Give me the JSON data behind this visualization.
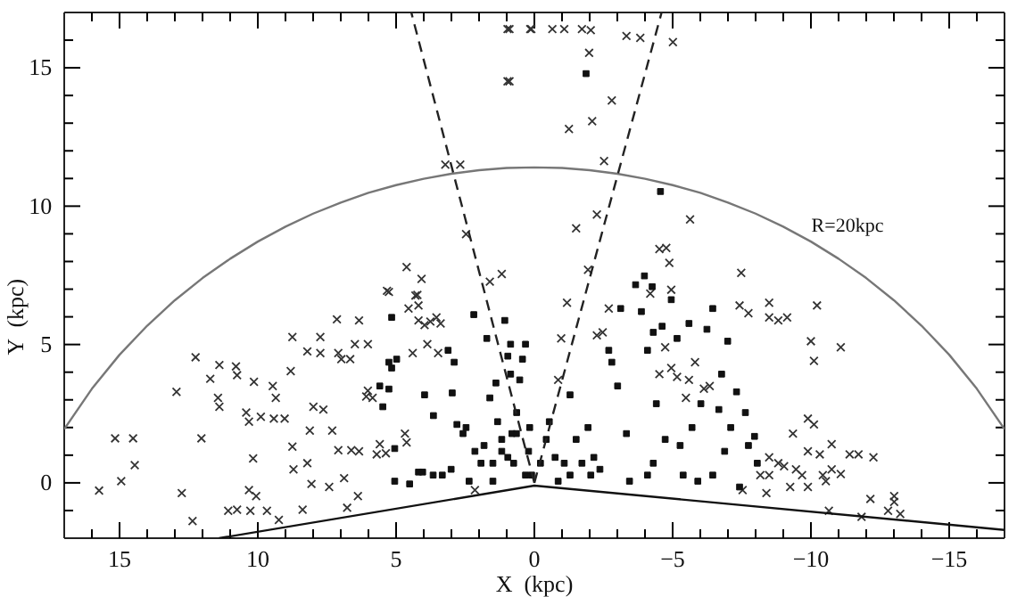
{
  "chart_data": {
    "type": "scatter",
    "xlabel": "X  (kpc)",
    "ylabel": "Y  (kpc)",
    "xlim": [
      17,
      -17
    ],
    "ylim": [
      -2,
      17
    ],
    "xticks": [
      {
        "value": 16,
        "label": null
      },
      15,
      {
        "value": 14,
        "label": null
      },
      {
        "value": 13,
        "label": null
      },
      {
        "value": 12,
        "label": null
      },
      {
        "value": 11,
        "label": null
      },
      10,
      {
        "value": 9,
        "label": null
      },
      {
        "value": 8,
        "label": null
      },
      {
        "value": 7,
        "label": null
      },
      {
        "value": 6,
        "label": null
      },
      5,
      {
        "value": 4,
        "label": null
      },
      {
        "value": 3,
        "label": null
      },
      {
        "value": 2,
        "label": null
      },
      {
        "value": 1,
        "label": null
      },
      0,
      {
        "value": -1,
        "label": null
      },
      {
        "value": -2,
        "label": null
      },
      {
        "value": -3,
        "label": null
      },
      {
        "value": -4,
        "label": null
      },
      {
        "value": -5,
        "label": "−5"
      },
      {
        "value": -6,
        "label": null
      },
      {
        "value": -7,
        "label": null
      },
      {
        "value": -8,
        "label": null
      },
      {
        "value": -9,
        "label": null
      },
      {
        "value": -10,
        "label": "−10"
      },
      {
        "value": -11,
        "label": null
      },
      {
        "value": -12,
        "label": null
      },
      {
        "value": -13,
        "label": null
      },
      {
        "value": -14,
        "label": null
      },
      {
        "value": -15,
        "label": "−15"
      },
      {
        "value": -16,
        "label": null
      }
    ],
    "yticks": [
      {
        "value": -1,
        "label": null
      },
      0,
      {
        "value": 1,
        "label": null
      },
      {
        "value": 2,
        "label": null
      },
      {
        "value": 3,
        "label": null
      },
      {
        "value": 4,
        "label": null
      },
      5,
      {
        "value": 6,
        "label": null
      },
      {
        "value": 7,
        "label": null
      },
      {
        "value": 8,
        "label": null
      },
      {
        "value": 9,
        "label": null
      },
      10,
      {
        "value": 11,
        "label": null
      },
      {
        "value": 12,
        "label": null
      },
      {
        "value": 13,
        "label": null
      },
      {
        "value": 14,
        "label": null
      },
      15,
      {
        "value": 16,
        "label": null
      }
    ],
    "grid": false,
    "annotations": [
      "R=20kpc"
    ],
    "series": [
      {
        "type": "scatter",
        "marker": "cross",
        "color": "#333333",
        "x": [
          15.74,
          15.16,
          14.94,
          14.51,
          14.45,
          12.94,
          12.75,
          12.36,
          12.25,
          12.04,
          11.72,
          11.44,
          11.39,
          11.39,
          10.79,
          10.75,
          11.07,
          10.75,
          10.42,
          10.32,
          10.27,
          10.14,
          10.17,
          10.32,
          10.06,
          9.89,
          9.46,
          9.35,
          9.42,
          9.67,
          9.24,
          9.03,
          8.81,
          8.75,
          8.75,
          8.71,
          8.38,
          8.21,
          7.99,
          8.12,
          8.21,
          7.74,
          7.74,
          8.06,
          7.63,
          7.42,
          7.31,
          7.09,
          7.14,
          7.09,
          6.98,
          6.88,
          6.77,
          6.66,
          6.62,
          6.49,
          6.34,
          6.34,
          6.38,
          6.02,
          6.08,
          6.02,
          5.85,
          5.7,
          5.59,
          5.37,
          5.26,
          4.68,
          4.62,
          4.55,
          4.4,
          4.3,
          4.19,
          4.19,
          3.97,
          3.76,
          3.54,
          3.48,
          3.39,
          3.87,
          2.15,
          -1.18,
          -0.97,
          -0.86,
          -2.26,
          -2.47,
          -2.69,
          -4.19,
          -4.52,
          -4.73,
          -4.95,
          -5.16,
          -5.48,
          -5.59,
          -5.81,
          -6.13,
          -6.34,
          -7.42,
          -7.74,
          -8.49,
          -8.49,
          -8.82,
          -9.14,
          -10.22,
          -10.0,
          -10.11,
          -11.08,
          -9.89,
          -10.11,
          -9.35,
          -10.75,
          -9.89,
          -10.32,
          -11.4,
          -11.72,
          -12.26,
          -8.49,
          -8.82,
          -9.03,
          -8.17,
          -8.49,
          -9.46,
          -9.68,
          -10.43,
          -10.75,
          -11.08,
          -10.54,
          -7.53,
          -8.39,
          -9.25,
          -9.89,
          -12.15,
          -13.01,
          -13.01,
          -12.79,
          -13.23,
          -11.83,
          -10.65,
          3.22,
          2.68,
          2.47,
          4.62,
          4.08,
          5.33,
          4.23,
          1.61,
          1.18,
          0.9,
          0.9,
          0.15,
          0.97,
          0.11,
          -0.65,
          -1.08,
          -1.72,
          -2.04,
          -3.33,
          -3.83,
          -5.01,
          0.97,
          -1.98,
          -2.8,
          -2.09,
          -1.25,
          -2.52,
          -5.63,
          -2.26,
          -1.51,
          -4.52,
          -4.77,
          -4.88,
          -7.48,
          -1.94,
          -4.95
        ],
        "values": [
          -0.28,
          1.61,
          0.06,
          1.61,
          0.64,
          3.29,
          -0.37,
          -1.38,
          4.54,
          1.61,
          3.76,
          3.07,
          2.75,
          4.26,
          4.21,
          3.89,
          -1.01,
          -0.97,
          2.54,
          2.21,
          -1.01,
          3.65,
          0.88,
          -0.26,
          -0.48,
          2.39,
          3.5,
          3.07,
          2.32,
          -1.01,
          -1.34,
          2.32,
          4.04,
          5.27,
          1.31,
          0.49,
          -0.97,
          0.71,
          2.75,
          1.89,
          4.75,
          4.69,
          5.27,
          -0.04,
          2.65,
          -0.15,
          1.89,
          1.18,
          5.91,
          4.69,
          4.47,
          0.17,
          -0.9,
          4.47,
          1.18,
          5.01,
          5.87,
          1.14,
          -0.48,
          5.01,
          3.12,
          3.33,
          3.07,
          1.03,
          1.4,
          1.07,
          6.9,
          1.78,
          1.46,
          6.3,
          4.69,
          6.77,
          5.87,
          6.41,
          5.7,
          5.83,
          5.98,
          4.69,
          5.76,
          5.01,
          -0.26,
          6.51,
          5.22,
          3.72,
          5.33,
          5.44,
          6.3,
          6.84,
          3.93,
          4.9,
          4.15,
          3.83,
          3.07,
          3.72,
          4.36,
          3.4,
          3.5,
          6.41,
          6.13,
          6.51,
          5.98,
          5.87,
          5.98,
          6.41,
          5.12,
          4.41,
          4.9,
          2.32,
          2.11,
          1.78,
          1.4,
          1.14,
          1.03,
          1.03,
          1.03,
          0.92,
          0.92,
          0.71,
          0.6,
          0.28,
          0.28,
          0.49,
          0.28,
          0.28,
          0.49,
          0.32,
          0.06,
          -0.26,
          -0.37,
          -0.15,
          -0.15,
          -0.58,
          -0.48,
          -0.69,
          -1.01,
          -1.12,
          -1.23,
          -1.01,
          11.5,
          11.5,
          8.99,
          7.8,
          7.37,
          6.94,
          6.79,
          7.27,
          7.55,
          14.51,
          16.4,
          16.4,
          16.4,
          16.4,
          16.4,
          16.4,
          16.4,
          16.36,
          16.15,
          16.08,
          15.93,
          14.51,
          15.54,
          13.82,
          13.07,
          12.79,
          11.63,
          9.52,
          9.7,
          9.2,
          8.45,
          8.49,
          7.95,
          7.59,
          7.7,
          6.98
        ]
      },
      {
        "type": "scatter",
        "marker": "square",
        "color": "#111111",
        "x": [
          5.26,
          5.16,
          4.98,
          5.16,
          5.48,
          5.59,
          5.26,
          5.05,
          5.05,
          4.51,
          4.19,
          4.04,
          3.66,
          3.33,
          3.01,
          3.97,
          3.65,
          3.12,
          2.9,
          2.97,
          2.8,
          2.58,
          2.47,
          2.19,
          2.15,
          1.93,
          1.82,
          1.72,
          1.61,
          1.39,
          1.33,
          1.18,
          1.07,
          0.96,
          0.86,
          0.96,
          0.81,
          0.75,
          0.64,
          0.53,
          0.43,
          0.32,
          0.21,
          0.17,
          0.1,
          1.5,
          2.36,
          1.5,
          0.86,
          1.18,
          0.65,
          0.32,
          -0.22,
          -0.43,
          -0.54,
          -0.75,
          -1.08,
          -1.29,
          -1.51,
          -1.72,
          -1.94,
          -2.15,
          -2.37,
          -2.69,
          -2.8,
          -3.12,
          -3.01,
          -3.33,
          -3.44,
          -3.87,
          -4.09,
          -4.3,
          -4.41,
          -4.62,
          -4.73,
          -4.95,
          -5.16,
          -5.27,
          -5.38,
          -5.59,
          -5.7,
          -5.91,
          -6.02,
          -6.24,
          -6.45,
          -6.67,
          -6.77,
          -6.88,
          -6.99,
          -7.1,
          -7.31,
          -7.42,
          -7.63,
          -7.74,
          -7.96,
          -8.06,
          -6.45,
          -4.3,
          -2.04,
          -4.09,
          -1.29,
          -0.86,
          -1.87,
          -4.56,
          -3.98,
          -4.26,
          -3.66
        ],
        "values": [
          4.36,
          4.15,
          4.47,
          5.98,
          2.75,
          3.5,
          3.39,
          1.24,
          0.06,
          -0.04,
          0.39,
          0.39,
          0.28,
          0.28,
          0.49,
          3.18,
          2.43,
          4.79,
          4.36,
          3.25,
          2.11,
          1.78,
          2.0,
          6.08,
          1.14,
          0.71,
          1.35,
          5.22,
          3.07,
          3.61,
          2.21,
          1.57,
          5.87,
          4.58,
          5.01,
          0.92,
          1.78,
          0.71,
          2.54,
          3.72,
          4.47,
          5.01,
          1.14,
          2.0,
          0.28,
          0.06,
          0.06,
          0.71,
          3.93,
          1.14,
          1.78,
          0.28,
          0.71,
          1.57,
          2.21,
          0.92,
          0.71,
          3.18,
          1.57,
          0.71,
          2.0,
          0.92,
          0.49,
          4.79,
          4.36,
          6.3,
          3.5,
          1.78,
          0.06,
          6.19,
          4.79,
          5.44,
          2.86,
          5.66,
          1.57,
          6.62,
          5.22,
          1.35,
          0.28,
          5.76,
          2.0,
          0.06,
          2.86,
          5.55,
          0.28,
          2.65,
          3.93,
          1.14,
          5.12,
          2.0,
          3.29,
          -0.15,
          2.54,
          1.35,
          1.68,
          0.71,
          6.3,
          0.71,
          0.28,
          0.28,
          0.28,
          0.06,
          14.79,
          10.53,
          7.48,
          7.09,
          7.16
        ]
      },
      {
        "type": "line",
        "color": "#777777",
        "line_style": "solid",
        "x": [
          17,
          16,
          15,
          14,
          13,
          12,
          11,
          10,
          9,
          8,
          7,
          6,
          5,
          4,
          3,
          2,
          1,
          0,
          -1,
          -2,
          -3,
          -4,
          -5,
          -6,
          -7,
          -8,
          -9,
          -10,
          -11,
          -12,
          -13,
          -14,
          -15,
          -16,
          -17
        ],
        "values": [
          1.94,
          3.4,
          4.63,
          5.68,
          6.6,
          7.4,
          8.1,
          8.72,
          9.26,
          9.73,
          10.13,
          10.48,
          10.76,
          10.99,
          11.17,
          11.3,
          11.38,
          11.4,
          11.38,
          11.3,
          11.17,
          10.99,
          10.76,
          10.48,
          10.13,
          9.73,
          9.26,
          8.72,
          8.1,
          7.4,
          6.6,
          5.68,
          4.63,
          3.4,
          1.94
        ]
      },
      {
        "type": "line",
        "color": "#222222",
        "line_style": "dashed",
        "x": [
          0,
          4.45
        ],
        "values": [
          0,
          17
        ]
      },
      {
        "type": "line",
        "color": "#222222",
        "line_style": "dashed",
        "x": [
          0,
          -4.6
        ],
        "values": [
          0,
          17
        ]
      },
      {
        "type": "line",
        "color": "#111111",
        "line_style": "solid",
        "x": [
          11.4,
          0,
          -17
        ],
        "values": [
          -2,
          -0.1,
          -1.7
        ]
      }
    ]
  }
}
